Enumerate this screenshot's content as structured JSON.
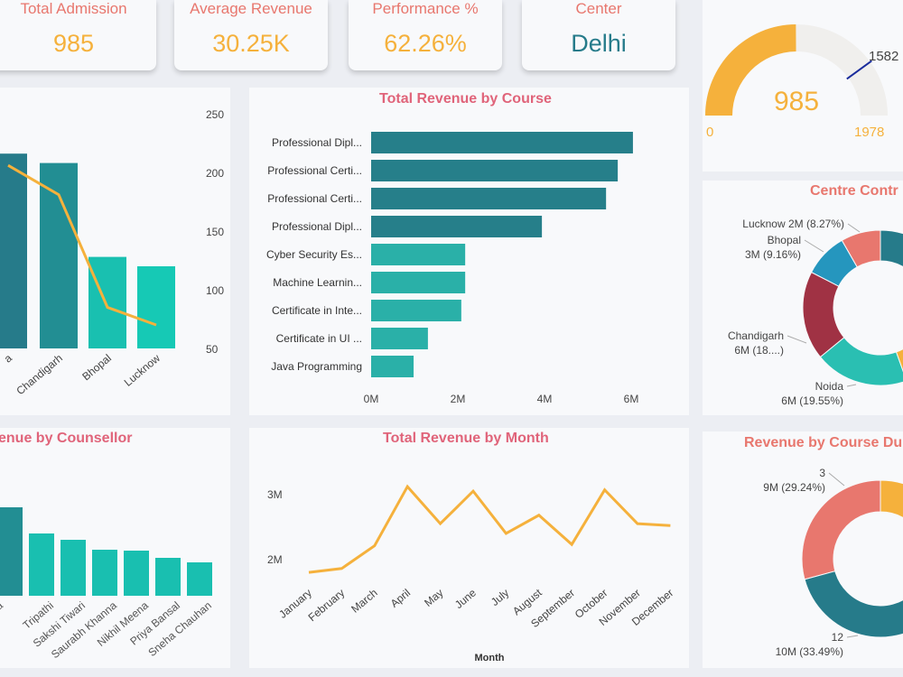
{
  "kpis": [
    {
      "label": "Total Admission",
      "value": "985"
    },
    {
      "label": "Average Revenue",
      "value": "30.25K"
    },
    {
      "label": "Performance %",
      "value": "62.26%"
    },
    {
      "label": "Center",
      "value": "Delhi"
    }
  ],
  "colors": {
    "accent": "#f5b13c",
    "title": "#e0647a",
    "teal_dark": "#267b8a",
    "teal": "#2ab8aa",
    "teal_light": "#16c9b5",
    "center_value": "#267b8a"
  },
  "chart_data": [
    {
      "type": "bar+line",
      "title": "",
      "categories": [
        "a",
        "Chandigarh",
        "Bhopal",
        "Lucknow"
      ],
      "bar_values": [
        216,
        208,
        128,
        120
      ],
      "line_values": [
        206,
        181,
        85,
        70
      ],
      "y2_ticks": [
        "250",
        "200",
        "150",
        "100",
        "50"
      ],
      "y2lim": [
        50,
        250
      ]
    },
    {
      "type": "bar",
      "orientation": "horizontal",
      "title": "Total Revenue by Course",
      "categories": [
        "Professional Dipl...",
        "Professional Certi...",
        "Professional Certi...",
        "Professional Dipl...",
        "Cyber Security Es...",
        "Machine Learnin...",
        "Certificate in Inte...",
        "Certificate in UI ...",
        "Java Programming"
      ],
      "values": [
        6.04,
        5.69,
        5.42,
        3.94,
        2.17,
        2.17,
        2.08,
        1.31,
        0.98
      ],
      "unit": "M",
      "x_ticks": [
        "0M",
        "2M",
        "4M",
        "6M"
      ],
      "xlim": [
        0,
        6
      ]
    },
    {
      "type": "line",
      "title": "Total Revenue by Month",
      "xlabel": "Month",
      "categories": [
        "January",
        "February",
        "March",
        "April",
        "May",
        "June",
        "July",
        "August",
        "September",
        "October",
        "November",
        "December"
      ],
      "values": [
        1.79,
        1.85,
        2.2,
        3.11,
        2.54,
        3.04,
        2.39,
        2.67,
        2.22,
        3.06,
        2.54,
        2.51
      ],
      "unit": "M",
      "y_ticks": [
        "3M",
        "2M"
      ]
    },
    {
      "type": "bar",
      "title": "enue by Counsellor",
      "categories": [
        "a",
        "Tripathi",
        "Sakshi Tiwari",
        "Saurabh Khanna",
        "Nikhil Meena",
        "Priya Bansal",
        "Sneha Chauhan"
      ],
      "values": [
        98,
        69,
        62,
        51,
        50,
        42,
        37
      ]
    },
    {
      "type": "gauge",
      "value": "985",
      "min": "0",
      "max": "1978",
      "target": "1582"
    },
    {
      "type": "donut",
      "title": "Centre Contr",
      "slices": [
        {
          "label": "Lucknow 2M (8.27%)",
          "percent": 8.27,
          "color": "#e8776e"
        },
        {
          "label": "Bhopal",
          "sub": "3M (9.16%)",
          "percent": 9.16,
          "color": "#2596be"
        },
        {
          "label": "Chandigarh",
          "sub": "6M (18....)",
          "percent": 18.5,
          "color": "#a03244"
        },
        {
          "label": "Noida",
          "sub": "6M (19.55%)",
          "percent": 19.55,
          "color": "#2abfb2"
        },
        {
          "percent": 10,
          "color": "#f5b13c"
        },
        {
          "percent": 34.52,
          "color": "#267b8a"
        }
      ]
    },
    {
      "type": "donut",
      "title": "Revenue by Course Du",
      "slices": [
        {
          "label": "3",
          "sub": "9M (29.24%)",
          "percent": 29.24,
          "color": "#e8776e"
        },
        {
          "label": "12",
          "sub": "10M (33.49%)",
          "percent": 33.49,
          "color": "#267b8a"
        },
        {
          "percent": 37.27,
          "color": "#f5b13c"
        }
      ]
    }
  ]
}
